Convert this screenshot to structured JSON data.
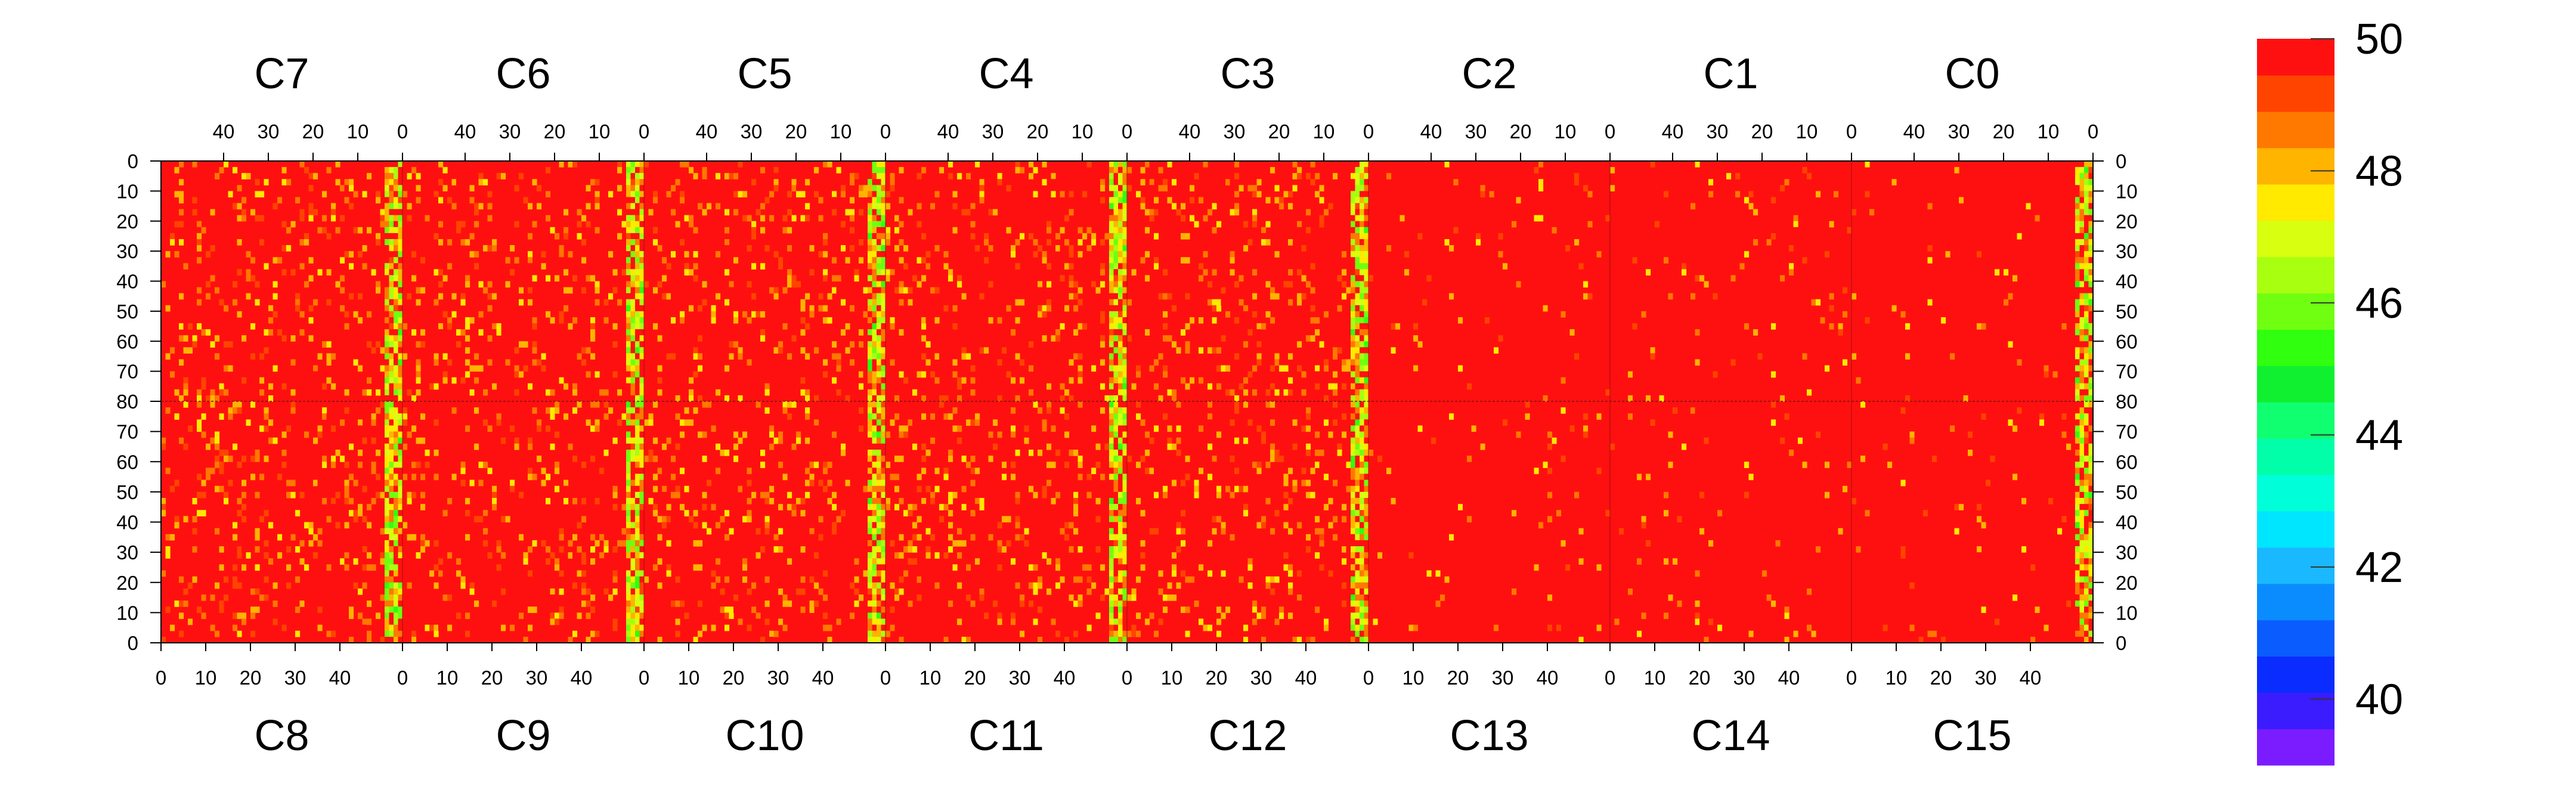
{
  "chart_data": {
    "type": "heatmap",
    "title": "",
    "top_chips": [
      "C7",
      "C6",
      "C5",
      "C4",
      "C3",
      "C2",
      "C1",
      "C0"
    ],
    "bottom_chips": [
      "C8",
      "C9",
      "C10",
      "C11",
      "C12",
      "C13",
      "C14",
      "C15"
    ],
    "channels_per_chip": 54,
    "rows_per_half": 80,
    "top_axis_ticks": [
      "40",
      "30",
      "20",
      "10",
      "0"
    ],
    "top_axis_tick_values": [
      40,
      30,
      20,
      10,
      0
    ],
    "bottom_axis_ticks": [
      "0",
      "10",
      "20",
      "30",
      "40"
    ],
    "bottom_axis_tick_values": [
      0,
      10,
      20,
      30,
      40
    ],
    "y_ticks_top_half": [
      "0",
      "10",
      "20",
      "30",
      "40",
      "50",
      "60",
      "70",
      "80"
    ],
    "y_ticks_bottom_half": [
      "70",
      "60",
      "50",
      "40",
      "30",
      "20",
      "10",
      "0"
    ],
    "y_tick_values_top_half": [
      0,
      10,
      20,
      30,
      40,
      50,
      60,
      70,
      80
    ],
    "y_tick_values_bottom_half": [
      70,
      60,
      50,
      40,
      30,
      20,
      10,
      0
    ],
    "z_range": [
      39,
      50
    ],
    "colorbar_labels": [
      "50",
      "48",
      "46",
      "44",
      "42",
      "40"
    ],
    "colorbar_values": [
      50,
      48,
      46,
      44,
      42,
      40
    ],
    "palette": [
      "#7a1cff",
      "#3a1cff",
      "#0a2cff",
      "#0a5cff",
      "#0a8cff",
      "#1ab8ff",
      "#00e6ff",
      "#00ffd8",
      "#00ffa8",
      "#10ff70",
      "#10f030",
      "#30ff10",
      "#70ff10",
      "#a8ff10",
      "#d8ff10",
      "#ffea00",
      "#ffb400",
      "#ff7800",
      "#ff4400",
      "#ff1010"
    ],
    "hot_columns": [
      {
        "chip": "C7",
        "position": "right edge",
        "level": "46-48"
      },
      {
        "chip": "C6",
        "position": "right edge",
        "level": "47-48"
      },
      {
        "chip": "C5",
        "position": "right edge",
        "level": "46-48"
      },
      {
        "chip": "C4",
        "position": "right edge",
        "level": "45-48"
      },
      {
        "chip": "C3",
        "position": "right edge",
        "level": "45-48"
      },
      {
        "chip": "C0",
        "position": "right edge",
        "level": "46-48"
      }
    ],
    "grid": false
  }
}
